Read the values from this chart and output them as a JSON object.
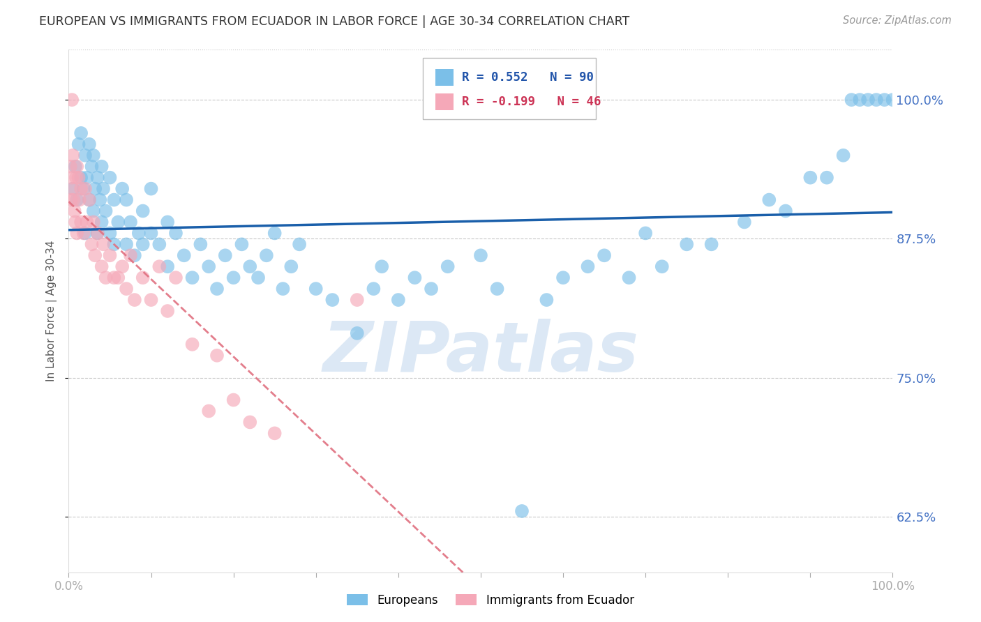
{
  "title": "EUROPEAN VS IMMIGRANTS FROM ECUADOR IN LABOR FORCE | AGE 30-34 CORRELATION CHART",
  "source": "Source: ZipAtlas.com",
  "ylabel": "In Labor Force | Age 30-34",
  "xlim": [
    0.0,
    1.0
  ],
  "ylim": [
    0.575,
    1.045
  ],
  "yticks": [
    0.625,
    0.75,
    0.875,
    1.0
  ],
  "ytick_labels": [
    "62.5%",
    "75.0%",
    "87.5%",
    "100.0%"
  ],
  "xticks": [
    0.0,
    0.1,
    0.2,
    0.3,
    0.4,
    0.5,
    0.6,
    0.7,
    0.8,
    0.9,
    1.0
  ],
  "xtick_labels": [
    "0.0%",
    "",
    "",
    "",
    "",
    "",
    "",
    "",
    "",
    "",
    "100.0%"
  ],
  "legend_blue_label": "Europeans",
  "legend_pink_label": "Immigrants from Ecuador",
  "r_blue": 0.552,
  "n_blue": 90,
  "r_pink": -0.199,
  "n_pink": 46,
  "blue_color": "#7bbfe8",
  "pink_color": "#f5a8b8",
  "blue_line_color": "#1a5faa",
  "pink_line_color": "#e07080",
  "watermark": "ZIPatlas",
  "watermark_color": "#dce8f5",
  "blue_x": [
    0.005,
    0.008,
    0.01,
    0.012,
    0.015,
    0.015,
    0.018,
    0.02,
    0.02,
    0.022,
    0.025,
    0.025,
    0.028,
    0.03,
    0.03,
    0.032,
    0.035,
    0.035,
    0.038,
    0.04,
    0.04,
    0.042,
    0.045,
    0.05,
    0.05,
    0.055,
    0.055,
    0.06,
    0.065,
    0.07,
    0.07,
    0.075,
    0.08,
    0.085,
    0.09,
    0.09,
    0.1,
    0.1,
    0.11,
    0.12,
    0.12,
    0.13,
    0.14,
    0.15,
    0.16,
    0.17,
    0.18,
    0.19,
    0.2,
    0.21,
    0.22,
    0.23,
    0.24,
    0.25,
    0.26,
    0.27,
    0.28,
    0.3,
    0.32,
    0.35,
    0.37,
    0.38,
    0.4,
    0.42,
    0.44,
    0.46,
    0.5,
    0.52,
    0.55,
    0.58,
    0.6,
    0.63,
    0.65,
    0.68,
    0.7,
    0.72,
    0.75,
    0.78,
    0.82,
    0.85,
    0.87,
    0.9,
    0.92,
    0.94,
    0.95,
    0.96,
    0.97,
    0.98,
    0.99,
    1.0
  ],
  "blue_y": [
    0.92,
    0.94,
    0.91,
    0.96,
    0.93,
    0.97,
    0.92,
    0.88,
    0.95,
    0.93,
    0.91,
    0.96,
    0.94,
    0.9,
    0.95,
    0.92,
    0.88,
    0.93,
    0.91,
    0.89,
    0.94,
    0.92,
    0.9,
    0.88,
    0.93,
    0.91,
    0.87,
    0.89,
    0.92,
    0.87,
    0.91,
    0.89,
    0.86,
    0.88,
    0.87,
    0.9,
    0.88,
    0.92,
    0.87,
    0.85,
    0.89,
    0.88,
    0.86,
    0.84,
    0.87,
    0.85,
    0.83,
    0.86,
    0.84,
    0.87,
    0.85,
    0.84,
    0.86,
    0.88,
    0.83,
    0.85,
    0.87,
    0.83,
    0.82,
    0.79,
    0.83,
    0.85,
    0.82,
    0.84,
    0.83,
    0.85,
    0.86,
    0.83,
    0.63,
    0.82,
    0.84,
    0.85,
    0.86,
    0.84,
    0.88,
    0.85,
    0.87,
    0.87,
    0.89,
    0.91,
    0.9,
    0.93,
    0.93,
    0.95,
    1.0,
    1.0,
    1.0,
    1.0,
    1.0,
    1.0
  ],
  "pink_x": [
    0.002,
    0.003,
    0.004,
    0.004,
    0.005,
    0.005,
    0.006,
    0.007,
    0.008,
    0.009,
    0.01,
    0.01,
    0.012,
    0.013,
    0.015,
    0.015,
    0.018,
    0.02,
    0.022,
    0.025,
    0.028,
    0.03,
    0.032,
    0.035,
    0.04,
    0.042,
    0.045,
    0.05,
    0.055,
    0.06,
    0.065,
    0.07,
    0.075,
    0.08,
    0.09,
    0.1,
    0.11,
    0.12,
    0.13,
    0.15,
    0.17,
    0.18,
    0.2,
    0.22,
    0.25,
    0.35
  ],
  "pink_y": [
    0.94,
    0.91,
    0.93,
    1.0,
    0.95,
    0.92,
    0.91,
    0.9,
    0.89,
    0.93,
    0.94,
    0.88,
    0.93,
    0.91,
    0.92,
    0.89,
    0.88,
    0.92,
    0.89,
    0.91,
    0.87,
    0.89,
    0.86,
    0.88,
    0.85,
    0.87,
    0.84,
    0.86,
    0.84,
    0.84,
    0.85,
    0.83,
    0.86,
    0.82,
    0.84,
    0.82,
    0.85,
    0.81,
    0.84,
    0.78,
    0.72,
    0.77,
    0.73,
    0.71,
    0.7,
    0.82
  ]
}
